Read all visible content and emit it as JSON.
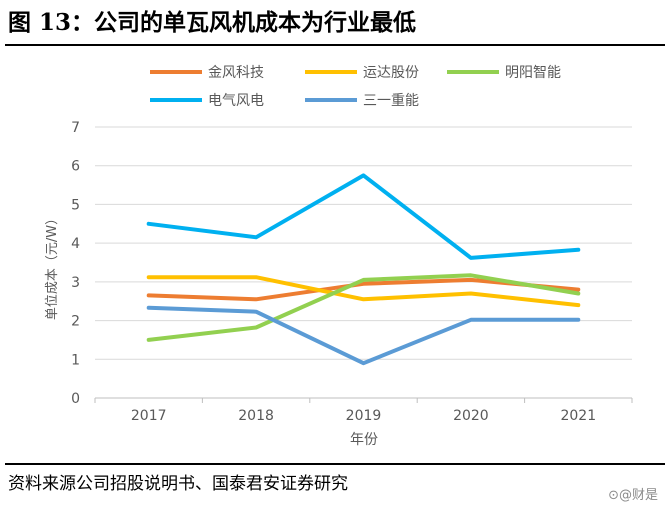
{
  "figure": {
    "title": "图 13：公司的单瓦风机成本为行业最低",
    "source": "资料来源公司招股说明书、国泰君安证券研究",
    "watermark": "⊙@财是"
  },
  "chart_data": {
    "type": "line",
    "title": "",
    "xlabel": "年份",
    "ylabel": "单位成本（元/W）",
    "ylim": [
      0,
      7
    ],
    "yticks": [
      "0",
      "1",
      "2",
      "3",
      "4",
      "5",
      "6",
      "7"
    ],
    "grid": true,
    "legend_position": "top",
    "categories": [
      "2017",
      "2018",
      "2019",
      "2020",
      "2021"
    ],
    "series": [
      {
        "name": "金风科技",
        "color": "#ED7D31",
        "values": [
          2.65,
          2.55,
          2.95,
          3.05,
          2.8
        ]
      },
      {
        "name": "运达股份",
        "color": "#FFC000",
        "values": [
          3.12,
          3.12,
          2.55,
          2.7,
          2.4
        ]
      },
      {
        "name": "明阳智能",
        "color": "#92D050",
        "values": [
          1.5,
          1.82,
          3.05,
          3.17,
          2.7
        ]
      },
      {
        "name": "电气风电",
        "color": "#00B0F0",
        "values": [
          4.5,
          4.15,
          5.75,
          3.62,
          3.83
        ]
      },
      {
        "name": "三一重能",
        "color": "#5B9BD5",
        "values": [
          2.33,
          2.23,
          0.9,
          2.02,
          2.02
        ]
      }
    ]
  }
}
